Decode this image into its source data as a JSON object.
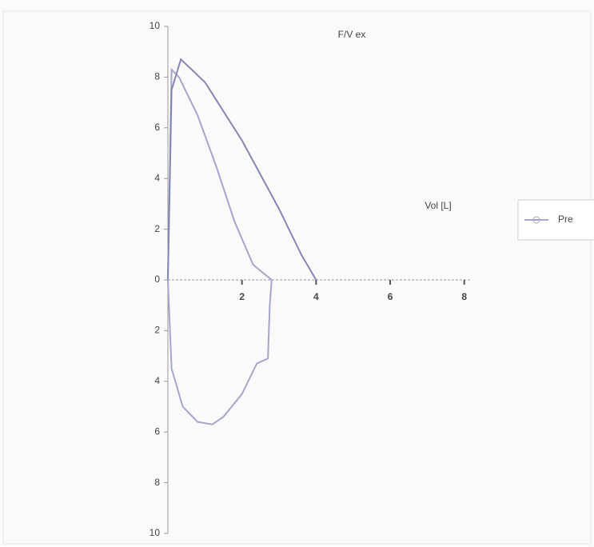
{
  "chart_data": {
    "type": "line",
    "title": "F/V ex",
    "x_label": "Vol [L]",
    "series": [
      {
        "name": "Pre",
        "color": "#a4a6cc",
        "x": [
          0,
          0.1,
          0.3,
          0.8,
          1.3,
          1.8,
          2.3,
          2.8,
          2.75,
          2.7,
          2.4,
          2.0,
          1.5,
          1.2,
          0.8,
          0.4,
          0.1,
          0
        ],
        "values": [
          0,
          8.3,
          8.0,
          6.5,
          4.5,
          2.3,
          0.6,
          0,
          -1,
          -3.1,
          -3.3,
          -4.5,
          -5.4,
          -5.7,
          -5.6,
          -5.0,
          -3.5,
          0
        ]
      },
      {
        "color": "#8486b4",
        "x": [
          0,
          0.1,
          0.35,
          1.0,
          2.0,
          3.0,
          3.6,
          4.0
        ],
        "values": [
          0,
          7.5,
          8.7,
          7.8,
          5.5,
          2.8,
          1.0,
          0
        ]
      }
    ],
    "xlim": [
      0,
      8.2
    ],
    "xticks": [
      2,
      4,
      6,
      8
    ],
    "ylim": [
      -10,
      10
    ],
    "yticks": [
      10,
      8,
      6,
      4,
      2,
      0,
      {
        "value": -2,
        "label": "2"
      },
      {
        "value": -4,
        "label": "4"
      },
      {
        "value": -6,
        "label": "6"
      },
      {
        "value": -8,
        "label": "8"
      },
      {
        "value": -10,
        "label": "10"
      }
    ],
    "legend": "right"
  }
}
